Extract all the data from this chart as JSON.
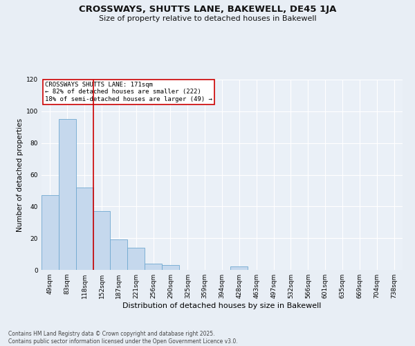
{
  "title": "CROSSWAYS, SHUTTS LANE, BAKEWELL, DE45 1JA",
  "subtitle": "Size of property relative to detached houses in Bakewell",
  "xlabel": "Distribution of detached houses by size in Bakewell",
  "ylabel": "Number of detached properties",
  "categories": [
    "49sqm",
    "83sqm",
    "118sqm",
    "152sqm",
    "187sqm",
    "221sqm",
    "256sqm",
    "290sqm",
    "325sqm",
    "359sqm",
    "394sqm",
    "428sqm",
    "463sqm",
    "497sqm",
    "532sqm",
    "566sqm",
    "601sqm",
    "635sqm",
    "669sqm",
    "704sqm",
    "738sqm"
  ],
  "values": [
    47,
    95,
    52,
    37,
    19,
    14,
    4,
    3,
    0,
    0,
    0,
    2,
    0,
    0,
    0,
    0,
    0,
    0,
    0,
    0,
    0
  ],
  "bar_color": "#c5d8ed",
  "bar_edge_color": "#6fa8d0",
  "property_line_x": 2.5,
  "property_line_color": "#cc0000",
  "annotation_text": "CROSSWAYS SHUTTS LANE: 171sqm\n← 82% of detached houses are smaller (222)\n18% of semi-detached houses are larger (49) →",
  "annotation_box_color": "#cc0000",
  "ylim": [
    0,
    120
  ],
  "yticks": [
    0,
    20,
    40,
    60,
    80,
    100,
    120
  ],
  "footer": "Contains HM Land Registry data © Crown copyright and database right 2025.\nContains public sector information licensed under the Open Government Licence v3.0.",
  "background_color": "#e8eef5",
  "plot_background_color": "#eaf0f7",
  "grid_color": "#ffffff",
  "title_fontsize": 9.5,
  "subtitle_fontsize": 8,
  "ylabel_fontsize": 7.5,
  "xlabel_fontsize": 8,
  "tick_fontsize": 6.5,
  "footer_fontsize": 5.5
}
